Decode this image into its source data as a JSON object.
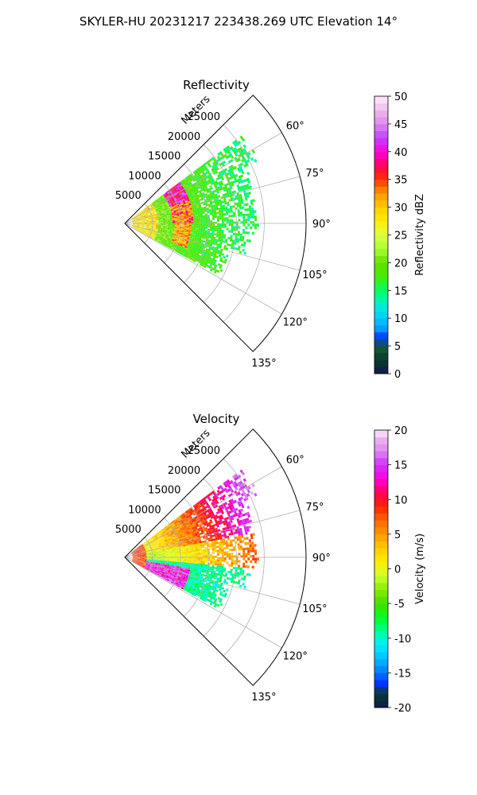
{
  "figure": {
    "suptitle": "SKYLER-HU  20231217  223438.269 UTC Elevation 14°"
  },
  "colors": {
    "grid": "#b0b0b0",
    "axis": "#000000"
  },
  "chart_data": [
    {
      "type": "heatmap",
      "subtype": "polar-sector",
      "title": "Reflectivity",
      "r_axis_label": "Meters",
      "r_ticks": [
        5000,
        10000,
        15000,
        20000,
        25000
      ],
      "r_tick_labels": [
        "5000",
        "10000",
        "15000",
        "20000",
        "25000"
      ],
      "r_max": 32500,
      "theta_range_deg": [
        45,
        135
      ],
      "theta_ticks": [
        60,
        75,
        90,
        105,
        120,
        135
      ],
      "theta_tick_labels": [
        "60°",
        "75°",
        "90°",
        "105°",
        "120°",
        "135°"
      ],
      "data_theta_range_deg": [
        53,
        119
      ],
      "colorbar": {
        "label": "Reflectivity dBZ",
        "range": [
          0,
          50
        ],
        "ticks": [
          0,
          5,
          10,
          15,
          20,
          25,
          30,
          35,
          40,
          45,
          50
        ],
        "tick_labels": [
          "0",
          "5",
          "10",
          "15",
          "20",
          "25",
          "30",
          "35",
          "40",
          "45",
          "50"
        ],
        "stops": [
          [
            0,
            "#0d1b4f"
          ],
          [
            2.5,
            "#0a3a2a"
          ],
          [
            5,
            "#1a5a3a"
          ],
          [
            6.5,
            "#0033ff"
          ],
          [
            8,
            "#0099ff"
          ],
          [
            10,
            "#00ccff"
          ],
          [
            12.5,
            "#00f0d0"
          ],
          [
            15,
            "#00ff66"
          ],
          [
            17.5,
            "#44ee00"
          ],
          [
            20,
            "#66dd00"
          ],
          [
            22.5,
            "#aaff33"
          ],
          [
            25,
            "#ddff44"
          ],
          [
            27.5,
            "#ffee00"
          ],
          [
            30,
            "#ffcc00"
          ],
          [
            32.5,
            "#ff9900"
          ],
          [
            35,
            "#ff3300"
          ],
          [
            37.5,
            "#ff0055"
          ],
          [
            40,
            "#ff00dd"
          ],
          [
            42.5,
            "#bb44ff"
          ],
          [
            45,
            "#dd88ee"
          ],
          [
            47.5,
            "#eebbee"
          ],
          [
            50,
            "#ffeeff"
          ]
        ]
      }
    },
    {
      "type": "heatmap",
      "subtype": "polar-sector",
      "title": "Velocity",
      "r_axis_label": "Meters",
      "r_ticks": [
        5000,
        10000,
        15000,
        20000,
        25000
      ],
      "r_tick_labels": [
        "5000",
        "10000",
        "15000",
        "20000",
        "25000"
      ],
      "r_max": 32500,
      "theta_range_deg": [
        45,
        135
      ],
      "theta_ticks": [
        60,
        75,
        90,
        105,
        120,
        135
      ],
      "theta_tick_labels": [
        "60°",
        "75°",
        "90°",
        "105°",
        "120°",
        "135°"
      ],
      "data_theta_range_deg": [
        53,
        119
      ],
      "colorbar": {
        "label": "Velocity (m/s)",
        "range": [
          -20,
          20
        ],
        "ticks": [
          -20,
          -15,
          -10,
          -5,
          0,
          5,
          10,
          15,
          20
        ],
        "tick_labels": [
          "-20",
          "-15",
          "-10",
          "-5",
          "0",
          "5",
          "10",
          "15",
          "20"
        ],
        "stops": [
          [
            -20,
            "#0d1b4f"
          ],
          [
            -18,
            "#0a3a2a"
          ],
          [
            -16.5,
            "#0033ff"
          ],
          [
            -15,
            "#0077ff"
          ],
          [
            -13,
            "#00bbff"
          ],
          [
            -11,
            "#00eeff"
          ],
          [
            -9,
            "#00ff99"
          ],
          [
            -7,
            "#00ff22"
          ],
          [
            -5,
            "#44dd00"
          ],
          [
            -3,
            "#88ee00"
          ],
          [
            -1,
            "#ccff33"
          ],
          [
            1,
            "#ffee00"
          ],
          [
            3,
            "#ffcc00"
          ],
          [
            5,
            "#ff9900"
          ],
          [
            7,
            "#ff6600"
          ],
          [
            9,
            "#ff2200"
          ],
          [
            11,
            "#ff0055"
          ],
          [
            13,
            "#ff00dd"
          ],
          [
            15,
            "#cc33ff"
          ],
          [
            17,
            "#dd88ee"
          ],
          [
            19,
            "#eebbee"
          ],
          [
            20,
            "#ffeeff"
          ]
        ]
      }
    }
  ]
}
